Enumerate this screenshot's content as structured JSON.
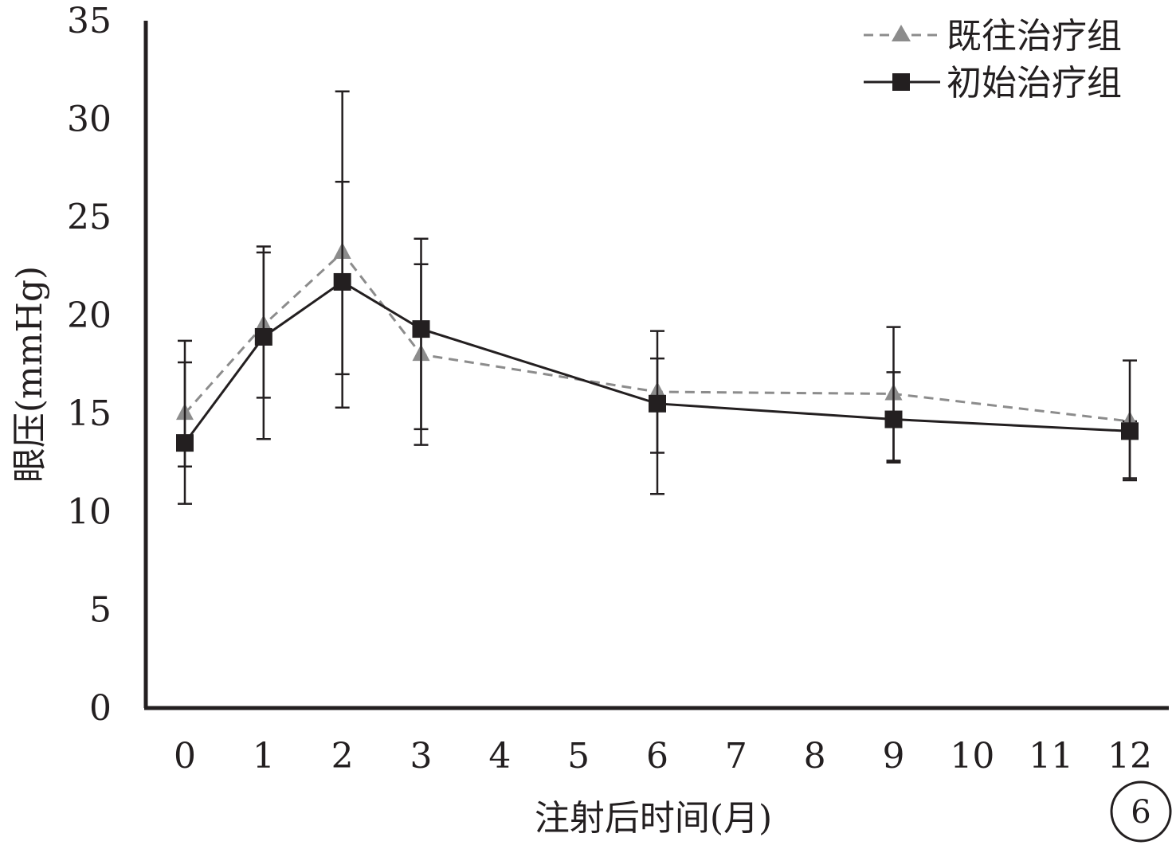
{
  "chart_data": {
    "type": "line",
    "xlabel": "注射后时间(月)",
    "ylabel": "眼压(mmHg)",
    "xlim": [
      0,
      12
    ],
    "ylim": [
      0,
      35
    ],
    "x_ticks": [
      "0",
      "1",
      "2",
      "3",
      "4",
      "5",
      "6",
      "7",
      "8",
      "9",
      "10",
      "11",
      "12"
    ],
    "y_ticks": [
      "0",
      "5",
      "10",
      "15",
      "20",
      "25",
      "30",
      "35"
    ],
    "legend_position": "top-right",
    "grid": false,
    "badge": "6",
    "series": [
      {
        "name": "既往治疗组",
        "style": "dashed",
        "marker": "triangle",
        "color": "#8c8c8c",
        "points": [
          {
            "x": 0,
            "y": 15.0,
            "err_low": 12.3,
            "err_high": 17.6
          },
          {
            "x": 1,
            "y": 19.5,
            "err_low": 15.8,
            "err_high": 23.2
          },
          {
            "x": 2,
            "y": 23.2,
            "err_low": 17.0,
            "err_high": 26.8
          },
          {
            "x": 3,
            "y": 18.0,
            "err_low": 14.2,
            "err_high": 22.6
          },
          {
            "x": 6,
            "y": 16.1,
            "err_low": 13.0,
            "err_high": 17.8
          },
          {
            "x": 9,
            "y": 16.0,
            "err_low": 12.6,
            "err_high": 17.1
          },
          {
            "x": 12,
            "y": 14.6,
            "err_low": 11.7,
            "err_high": 14.6
          }
        ]
      },
      {
        "name": "初始治疗组",
        "style": "solid",
        "marker": "square",
        "color": "#231f20",
        "points": [
          {
            "x": 0,
            "y": 13.5,
            "err_low": 10.4,
            "err_high": 18.7
          },
          {
            "x": 1,
            "y": 18.9,
            "err_low": 13.7,
            "err_high": 23.5
          },
          {
            "x": 2,
            "y": 21.7,
            "err_low": 15.3,
            "err_high": 31.4
          },
          {
            "x": 3,
            "y": 19.3,
            "err_low": 13.4,
            "err_high": 23.9
          },
          {
            "x": 6,
            "y": 15.5,
            "err_low": 10.9,
            "err_high": 19.2
          },
          {
            "x": 9,
            "y": 14.7,
            "err_low": 12.5,
            "err_high": 19.4
          },
          {
            "x": 12,
            "y": 14.1,
            "err_low": 11.6,
            "err_high": 17.7
          }
        ]
      }
    ]
  }
}
